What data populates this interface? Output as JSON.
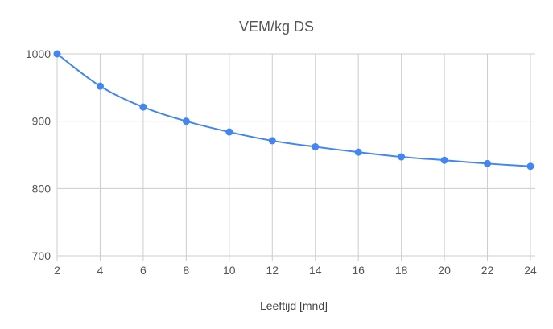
{
  "chart_data": {
    "type": "line",
    "title": "VEM/kg DS",
    "xlabel": "Leeftijd [mnd]",
    "ylabel": "",
    "xlim": [
      2,
      24
    ],
    "ylim": [
      700,
      1000
    ],
    "x_ticks": [
      2,
      4,
      6,
      8,
      10,
      12,
      14,
      16,
      18,
      20,
      22,
      24
    ],
    "y_ticks": [
      700,
      800,
      900,
      1000
    ],
    "grid": true,
    "legend": "none",
    "series": [
      {
        "name": "VEM/kg DS",
        "color": "#4285F4",
        "x": [
          2,
          4,
          6,
          8,
          10,
          12,
          14,
          16,
          18,
          20,
          22,
          24
        ],
        "y": [
          1000,
          952,
          921,
          900,
          884,
          871,
          862,
          854,
          847,
          842,
          837,
          833
        ]
      }
    ]
  }
}
